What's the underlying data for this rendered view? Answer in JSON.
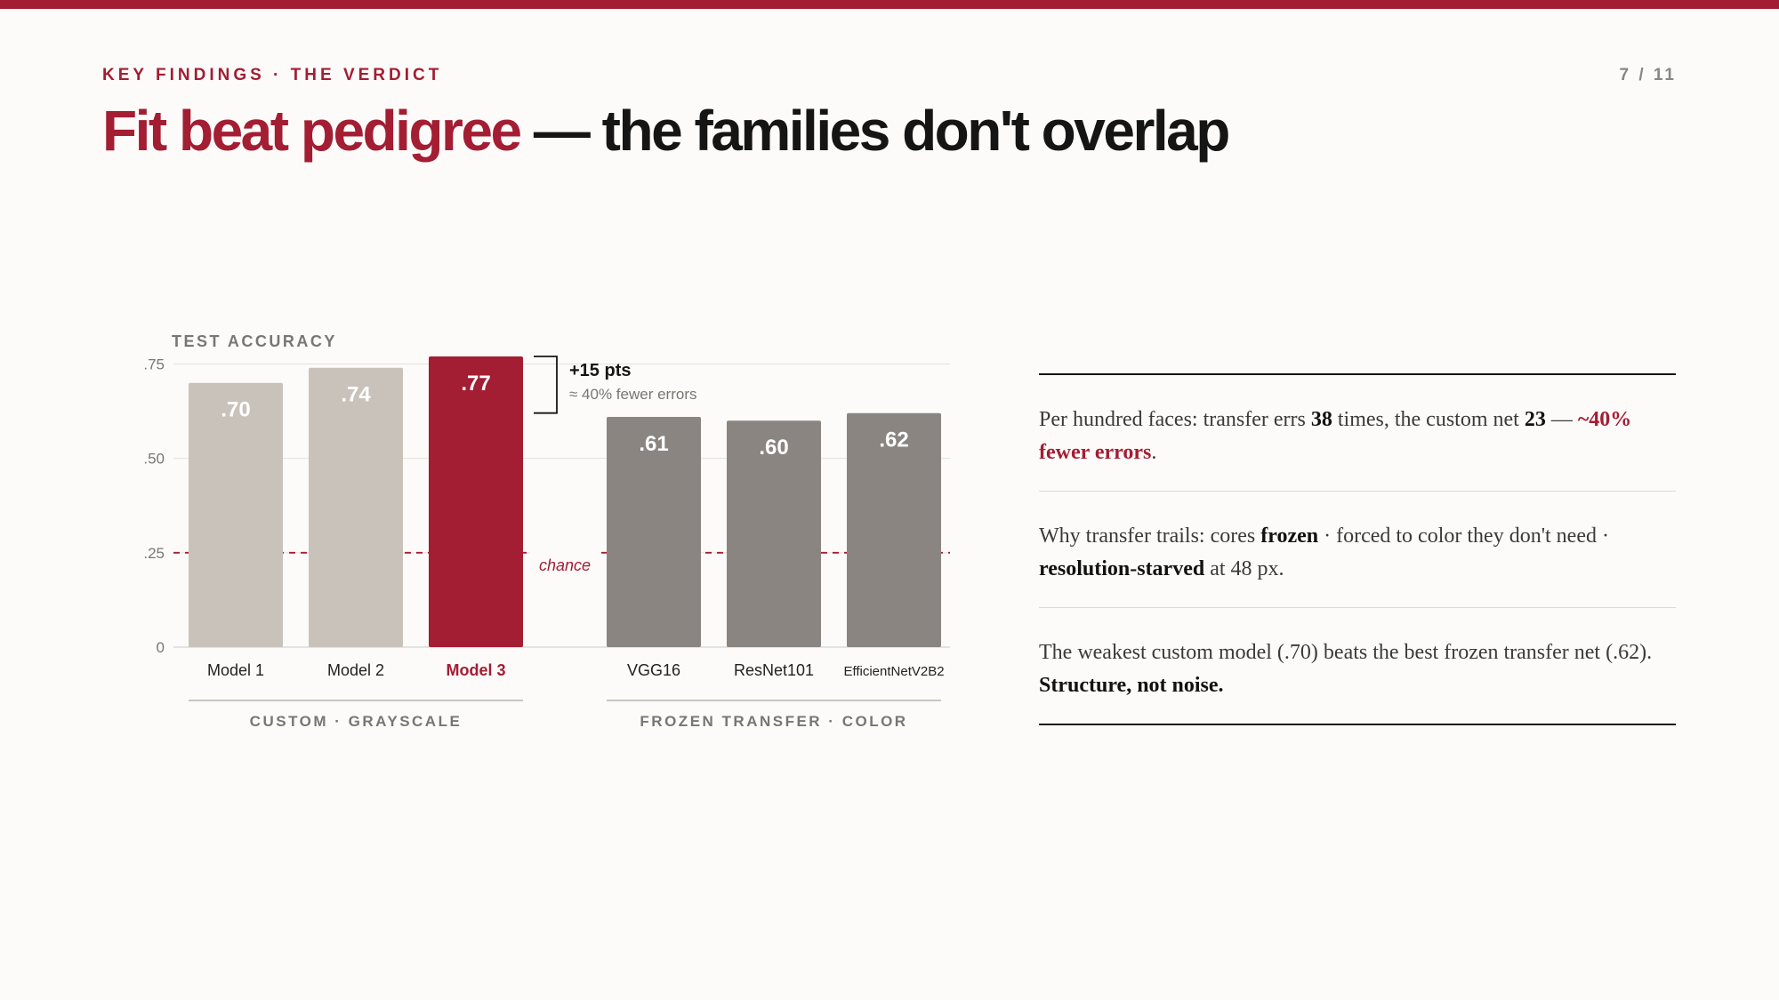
{
  "header": {
    "kicker": "KEY FINDINGS · THE VERDICT",
    "page": "7 / 11",
    "title_accent": "Fit beat pedigree",
    "title_rest": " — the families don't overlap"
  },
  "chart_data": {
    "type": "bar",
    "ylabel": "TEST ACCURACY",
    "ylim": [
      0,
      0.77
    ],
    "yticks": [
      {
        "value": 0,
        "label": "0"
      },
      {
        "value": 0.25,
        "label": ".25"
      },
      {
        "value": 0.5,
        "label": ".50"
      },
      {
        "value": 0.75,
        "label": ".75"
      }
    ],
    "categories": [
      "Model 1",
      "Model 2",
      "Model 3",
      "VGG16",
      "ResNet101",
      "EfficientNetV2B2"
    ],
    "values": [
      0.7,
      0.74,
      0.77,
      0.61,
      0.6,
      0.62
    ],
    "value_labels": [
      ".70",
      ".74",
      ".77",
      ".61",
      ".60",
      ".62"
    ],
    "highlight": "Model 3",
    "colors": {
      "custom": "#c9c2bb",
      "highlight": "#a31d33",
      "transfer": "#8a8580",
      "chance_line": "#a31d33"
    },
    "groups": [
      {
        "label": "CUSTOM · GRAYSCALE",
        "members": [
          "Model 1",
          "Model 2",
          "Model 3"
        ]
      },
      {
        "label": "FROZEN TRANSFER · COLOR",
        "members": [
          "VGG16",
          "ResNet101",
          "EfficientNetV2B2"
        ]
      }
    ],
    "reference_line": {
      "value": 0.25,
      "label": "chance"
    },
    "annotation": {
      "text": "+15 pts",
      "subtext": "≈ 40% fewer errors",
      "from": 0.62,
      "to": 0.77
    }
  },
  "notes": [
    {
      "parts": [
        {
          "t": "Per hundred faces: transfer errs "
        },
        {
          "t": "38",
          "s": "b"
        },
        {
          "t": " times, the custom net "
        },
        {
          "t": "23",
          "s": "b"
        },
        {
          "t": " — "
        },
        {
          "t": "~40% fewer errors",
          "s": "red"
        },
        {
          "t": "."
        }
      ]
    },
    {
      "parts": [
        {
          "t": "Why transfer trails: cores "
        },
        {
          "t": "frozen",
          "s": "b"
        },
        {
          "t": " · forced to color they don't need · "
        },
        {
          "t": "resolution-starved",
          "s": "b"
        },
        {
          "t": " at 48 px."
        }
      ]
    },
    {
      "parts": [
        {
          "t": "The weakest custom model (.70) beats the best frozen transfer net (.62). "
        },
        {
          "t": "Structure, not noise.",
          "s": "b"
        }
      ]
    }
  ]
}
